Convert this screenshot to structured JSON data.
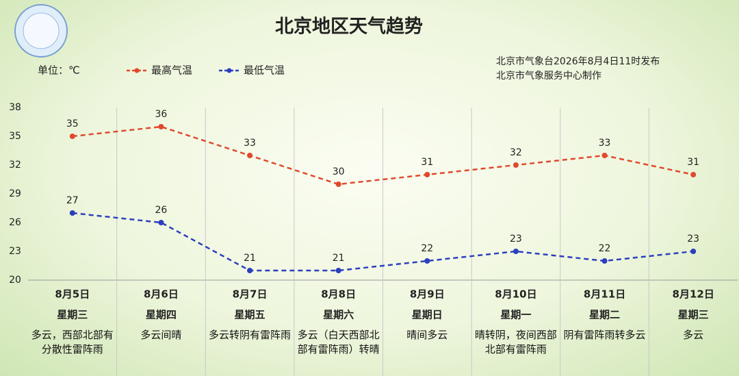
{
  "chart_data": {
    "type": "line",
    "title": "北京地区天气趋势",
    "source": [
      "北京市气象台2026年8月4日11时发布",
      "北京市气象服务中心制作"
    ],
    "y_label": "单位：℃",
    "categories": [
      "8月5日",
      "8月6日",
      "8月7日",
      "8月8日",
      "8月9日",
      "8月10日",
      "8月11日",
      "8月12日"
    ],
    "weekdays": [
      "星期三",
      "星期四",
      "星期五",
      "星期六",
      "星期日",
      "星期一",
      "星期二",
      "星期三"
    ],
    "weather": [
      "多云，西部北部有分散性雷阵雨",
      "多云间晴",
      "多云转阴有雷阵雨",
      "多云（白天西部北部有雷阵雨）转晴",
      "晴间多云",
      "晴转阴，夜间西部北部有雷阵雨",
      "阴有雷阵雨转多云",
      "多云"
    ],
    "series": [
      {
        "name": "最高气温",
        "color": "#e0492c",
        "values": [
          35,
          36,
          33,
          30,
          31,
          32,
          33,
          31
        ]
      },
      {
        "name": "最低气温",
        "color": "#2b3fbf",
        "values": [
          27,
          26,
          21,
          21,
          22,
          23,
          22,
          23
        ]
      }
    ],
    "ylim": [
      20,
      38
    ],
    "yticks": [
      20,
      23,
      26,
      29,
      32,
      35,
      38
    ],
    "grid": false
  }
}
